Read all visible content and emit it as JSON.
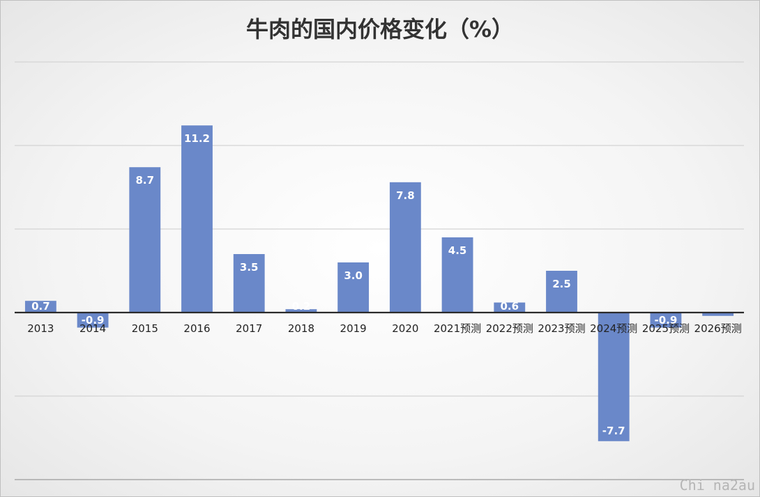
{
  "title": "牛肉的国内价格变化（%）",
  "watermark": "Chi na2au",
  "colors": {
    "bar": "#6a88c9",
    "axis": "#2b2b2b",
    "grid": "#d4d4d4",
    "label_inside": "#ffffff",
    "tick": "#222222"
  },
  "chart_data": {
    "type": "bar",
    "title": "牛肉的国内价格变化（%）",
    "categories": [
      "2013",
      "2014",
      "2015",
      "2016",
      "2017",
      "2018",
      "2019",
      "2020",
      "2021预测",
      "2022预测",
      "2023预测",
      "2024预测",
      "2025预测",
      "2026预测"
    ],
    "values": [
      0.7,
      -0.9,
      8.7,
      11.2,
      3.5,
      0.2,
      3.0,
      7.8,
      4.5,
      0.6,
      2.5,
      -7.7,
      -0.9,
      -0.2
    ],
    "data_labels": [
      "0.7",
      "-0.9",
      "8.7",
      "11.2",
      "3.5",
      "0.2",
      "3.0",
      "7.8",
      "4.5",
      "0.6",
      "2.5",
      "-7.7",
      "-0.9",
      ""
    ],
    "ylim": [
      -10,
      15
    ],
    "gridlines": [
      -10,
      -5,
      5,
      10,
      15
    ],
    "grid": true,
    "legend": "none",
    "xlabel": "",
    "ylabel": ""
  }
}
